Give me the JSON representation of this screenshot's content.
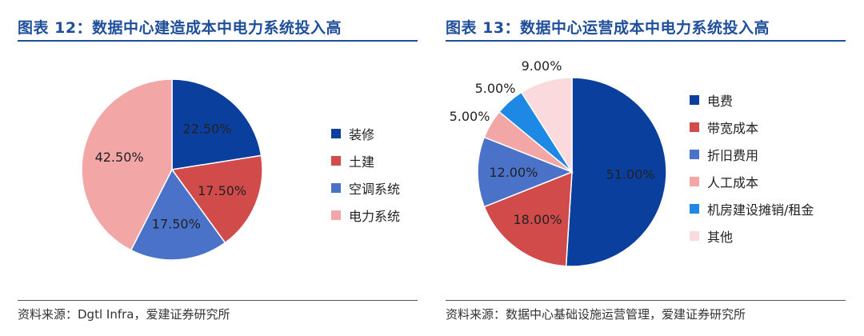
{
  "left": {
    "title": "图表 12：数据中心建造成本中电力系统投入高",
    "source": "资料来源：Dgtl Infra，爱建证券研究所",
    "chart_data": {
      "type": "pie",
      "labels": [
        "装修",
        "土建",
        "空调系统",
        "电力系统"
      ],
      "values": [
        22.5,
        17.5,
        17.5,
        42.5
      ],
      "value_labels": [
        "22.50%",
        "17.50%",
        "17.50%",
        "42.50%"
      ],
      "colors": [
        "#0b3f9e",
        "#d24b4b",
        "#4a72c8",
        "#f2a6a6"
      ],
      "legend_position": "right"
    }
  },
  "right": {
    "title": "图表 13：数据中心运营成本中电力系统投入高",
    "source": "资料来源：数据中心基础设施运营管理，爱建证券研究所",
    "chart_data": {
      "type": "pie",
      "labels": [
        "电费",
        "带宽成本",
        "折旧费用",
        "人工成本",
        "机房建设摊销/租金",
        "其他"
      ],
      "values": [
        51.0,
        18.0,
        12.0,
        5.0,
        5.0,
        9.0
      ],
      "value_labels": [
        "51.00%",
        "18.00%",
        "12.00%",
        "5.00%",
        "5.00%",
        "9.00%"
      ],
      "colors": [
        "#0b3f9e",
        "#d24b4b",
        "#4a72c8",
        "#f2a6a6",
        "#1e88e5",
        "#fadadd"
      ],
      "legend_position": "right"
    }
  }
}
